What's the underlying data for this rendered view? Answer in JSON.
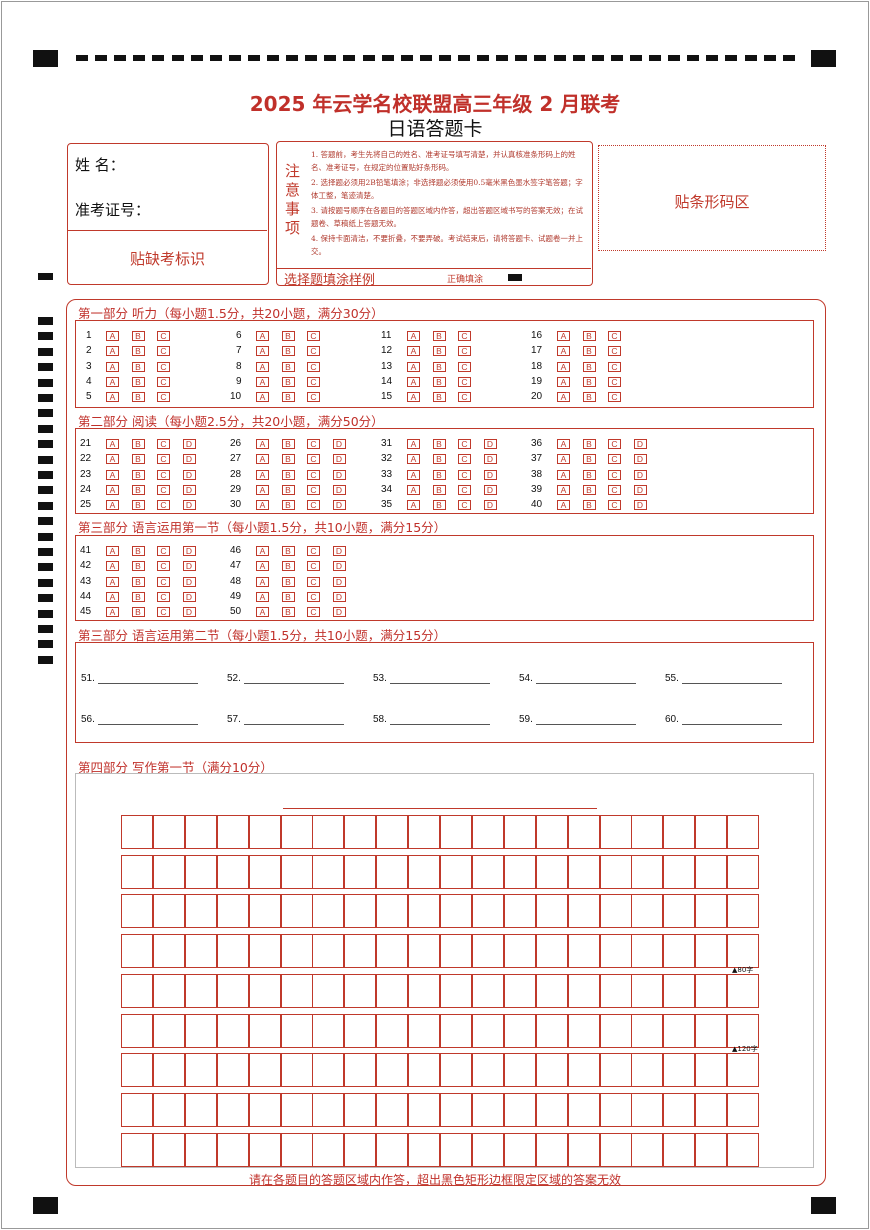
{
  "header": {
    "title": "2025 年云学名校联盟高三年级 2 月联考",
    "subtitle": "日语答题卡"
  },
  "info": {
    "name_label": "姓  名：",
    "id_label": "准考证号：",
    "absent_label": "贴缺考标识"
  },
  "notes": {
    "heading": "注意事项",
    "items": [
      "1. 答题前，考生先将自己的姓名、准考证号填写清楚，并认真核准条形码上的姓名、准考证号，在规定的位置贴好条形码。",
      "2. 选择题必须用2B铅笔填涂；非选择题必须使用0.5毫米黑色墨水签字笔答题；字体工整，笔迹清楚。",
      "3. 请按题号顺序在各题目的答题区域内作答，超出答题区域书写的答案无效；在试题卷、草稿纸上答题无效。",
      "4. 保持卡面清洁，不要折叠，不要弄破。考试结束后，请将答题卡、试题卷一并上交。"
    ],
    "sample_label": "选择题填涂样例",
    "correct_label": "正确填涂"
  },
  "barcode_label": "贴条形码区",
  "sections": [
    {
      "title": "第一部分  听力（每小题1.5分，共20小题，满分30分）",
      "start": 1,
      "end": 20,
      "options": [
        "A",
        "B",
        "C"
      ]
    },
    {
      "title": "第二部分  阅读（每小题2.5分，共20小题，满分50分）",
      "start": 21,
      "end": 40,
      "options": [
        "A",
        "B",
        "C",
        "D"
      ]
    },
    {
      "title": "第三部分  语言运用第一节（每小题1.5分，共10小题，满分15分）",
      "start": 41,
      "end": 50,
      "options": [
        "A",
        "B",
        "C",
        "D"
      ]
    }
  ],
  "fill_section": {
    "title": "第三部分  语言运用第二节（每小题1.5分，共10小题，满分15分）",
    "labels": [
      "51.",
      "52.",
      "53.",
      "54.",
      "55.",
      "56.",
      "57.",
      "58.",
      "59.",
      "60."
    ]
  },
  "writing": {
    "title": "第四部分  写作第一节（满分10分）",
    "rows": 9,
    "cols": 20,
    "markers": [
      {
        "after_row": 4,
        "text": "▲80字"
      },
      {
        "after_row": 6,
        "text": "▲120字"
      }
    ]
  },
  "footer": "请在各题目的答题区域内作答，超出黑色矩形边框限定区域的答案无效",
  "colors": {
    "accent": "#c0392b",
    "mark": "#111111"
  }
}
